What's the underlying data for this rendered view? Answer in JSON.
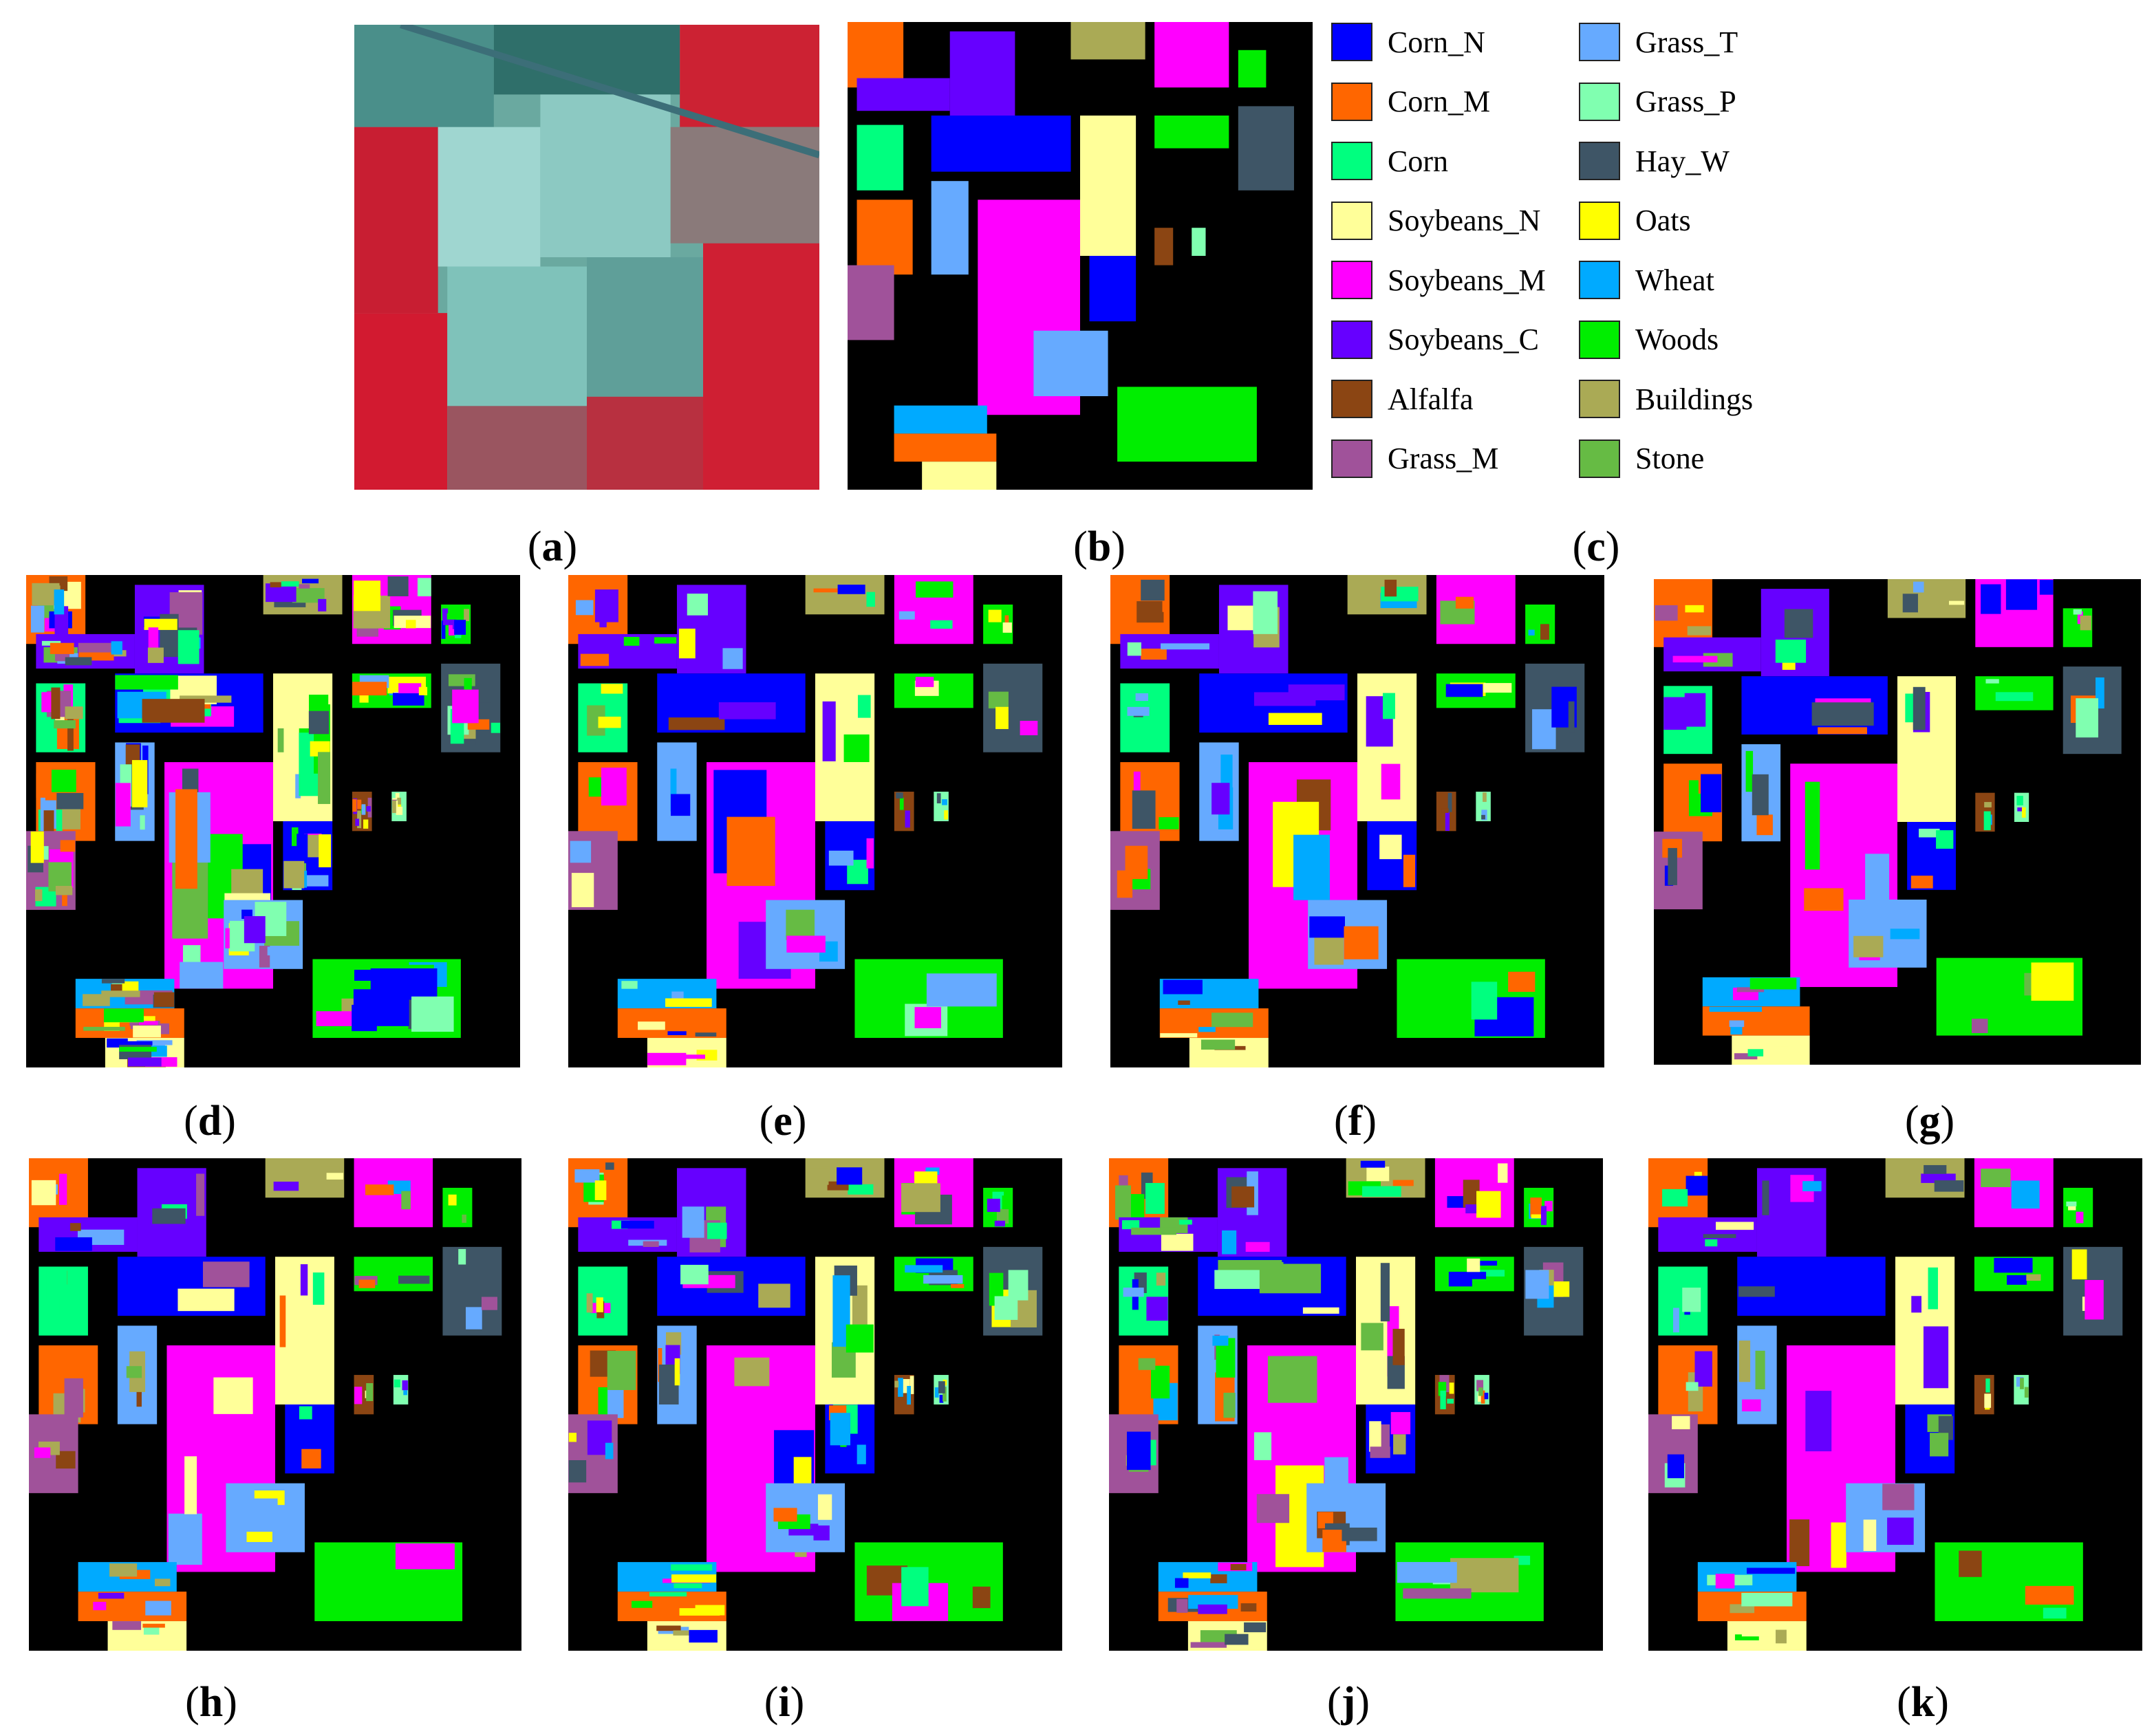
{
  "figure": {
    "panels": [
      {
        "id": "a",
        "label": "a",
        "kind": "false-color"
      },
      {
        "id": "b",
        "label": "b",
        "kind": "ground-truth"
      },
      {
        "id": "c",
        "label": "c",
        "kind": "legend"
      },
      {
        "id": "d",
        "label": "d",
        "kind": "classification"
      },
      {
        "id": "e",
        "label": "e",
        "kind": "classification"
      },
      {
        "id": "f",
        "label": "f",
        "kind": "classification"
      },
      {
        "id": "g",
        "label": "g",
        "kind": "classification"
      },
      {
        "id": "h",
        "label": "h",
        "kind": "classification"
      },
      {
        "id": "i",
        "label": "i",
        "kind": "classification"
      },
      {
        "id": "j",
        "label": "j",
        "kind": "classification"
      },
      {
        "id": "k",
        "label": "k",
        "kind": "classification"
      }
    ]
  },
  "legend": {
    "classes": [
      {
        "name": "Corn_N",
        "color": "#0000ff"
      },
      {
        "name": "Corn_M",
        "color": "#ff6600"
      },
      {
        "name": "Corn",
        "color": "#00ff7f"
      },
      {
        "name": "Soybeans_N",
        "color": "#ffff99"
      },
      {
        "name": "Soybeans_M",
        "color": "#ff00ff"
      },
      {
        "name": "Soybeans_C",
        "color": "#6600ff"
      },
      {
        "name": "Alfalfa",
        "color": "#8b4513"
      },
      {
        "name": "Grass_M",
        "color": "#a0529a"
      },
      {
        "name": "Grass_T",
        "color": "#66aaff"
      },
      {
        "name": "Grass_P",
        "color": "#80ffb0"
      },
      {
        "name": "Hay_W",
        "color": "#3e5566"
      },
      {
        "name": "Oats",
        "color": "#ffff00"
      },
      {
        "name": "Wheat",
        "color": "#00aaff"
      },
      {
        "name": "Woods",
        "color": "#00ee00"
      },
      {
        "name": "Buildings",
        "color": "#aaaa55"
      },
      {
        "name": "Stone",
        "color": "#66bb44"
      }
    ]
  },
  "captions": {
    "a": "a",
    "b": "b",
    "c": "c",
    "d": "d",
    "e": "e",
    "f": "f",
    "g": "g",
    "h": "h",
    "i": "i",
    "j": "j",
    "k": "k"
  },
  "caption_paren_open": "(",
  "caption_paren_close": ")"
}
